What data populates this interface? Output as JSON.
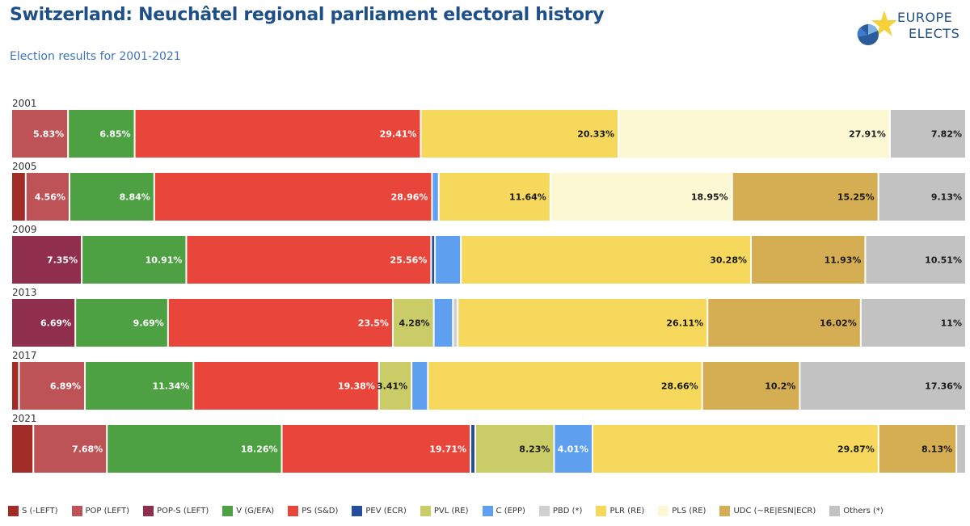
{
  "header": {
    "title": "Switzerland: Neuchâtel regional parliament electoral history",
    "subtitle": "Election results for 2001-2021"
  },
  "logo": {
    "line1": "EUROPE",
    "line2": "ELECTS"
  },
  "chart_data": {
    "type": "bar",
    "orientation": "horizontal",
    "stacked": true,
    "title": "Switzerland: Neuchâtel regional parliament electoral history",
    "subtitle": "Election results for 2001-2021",
    "categories": [
      "2001",
      "2005",
      "2009",
      "2013",
      "2017",
      "2021"
    ],
    "legend_position": "bottom",
    "grid": false,
    "series": [
      {
        "name": "S (-LEFT)",
        "color": "#a12b27",
        "values": [
          0,
          1.5,
          0,
          0,
          0.8,
          2.3
        ],
        "labels": [
          "",
          "",
          "",
          "",
          "",
          ""
        ]
      },
      {
        "name": "POP (LEFT)",
        "color": "#bd5257",
        "values": [
          5.83,
          4.56,
          0,
          0,
          6.89,
          7.68
        ],
        "labels": [
          "5.83%",
          "4.56%",
          "",
          "",
          "6.89%",
          "7.68%"
        ]
      },
      {
        "name": "POP-S (LEFT)",
        "color": "#8f2f4d",
        "values": [
          0,
          0,
          7.35,
          6.69,
          0,
          0
        ],
        "labels": [
          "",
          "",
          "7.35%",
          "6.69%",
          "",
          ""
        ]
      },
      {
        "name": "V (G/EFA)",
        "color": "#4ea143",
        "values": [
          6.85,
          8.84,
          10.91,
          9.69,
          11.34,
          18.26
        ],
        "labels": [
          "6.85%",
          "8.84%",
          "10.91%",
          "9.69%",
          "11.34%",
          "18.26%"
        ]
      },
      {
        "name": "PS (S&D)",
        "color": "#e8463b",
        "values": [
          29.41,
          28.96,
          25.56,
          23.5,
          19.38,
          19.71
        ],
        "labels": [
          "29.41%",
          "28.96%",
          "25.56%",
          "23.5%",
          "19.38%",
          "19.71%"
        ]
      },
      {
        "name": "PEV (ECR)",
        "color": "#244fa0",
        "values": [
          0,
          0,
          0.4,
          0,
          0,
          0.5
        ],
        "labels": [
          "",
          "",
          "",
          "",
          "",
          ""
        ]
      },
      {
        "name": "PVL (RE)",
        "color": "#c9cc67",
        "values": [
          0,
          0,
          0,
          4.28,
          3.41,
          8.23
        ],
        "labels": [
          "",
          "",
          "",
          "4.28%",
          "3.41%",
          "8.23%"
        ]
      },
      {
        "name": "C (EPP)",
        "color": "#5f9ff0",
        "values": [
          0,
          0.7,
          2.7,
          2.0,
          1.7,
          4.01
        ],
        "labels": [
          "",
          "",
          "",
          "",
          "",
          "4.01%"
        ]
      },
      {
        "name": "PBD (*)",
        "color": "#d0d0d0",
        "values": [
          0,
          0,
          0,
          0.5,
          0,
          0
        ],
        "labels": [
          "",
          "",
          "",
          "",
          "",
          ""
        ]
      },
      {
        "name": "PLR (RE)",
        "color": "#f6d95c",
        "values": [
          20.33,
          11.64,
          30.28,
          26.11,
          28.66,
          29.87
        ],
        "labels": [
          "20.33%",
          "11.64%",
          "30.28%",
          "26.11%",
          "28.66%",
          "29.87%"
        ]
      },
      {
        "name": "PLS (RE)",
        "color": "#fdf8d4",
        "values": [
          27.91,
          18.95,
          0,
          0,
          0,
          0
        ],
        "labels": [
          "27.91%",
          "18.95%",
          "",
          "",
          "",
          ""
        ]
      },
      {
        "name": "UDC (~RE|ESN|ECR)",
        "color": "#d5ad52",
        "values": [
          0,
          15.25,
          11.93,
          16.02,
          10.2,
          8.13
        ],
        "labels": [
          "",
          "15.25%",
          "11.93%",
          "16.02%",
          "10.2%",
          "8.13%"
        ]
      },
      {
        "name": "Others (*)",
        "color": "#c2c2c2",
        "values": [
          7.82,
          9.13,
          10.51,
          11,
          17.36,
          1.0
        ],
        "labels": [
          "7.82%",
          "9.13%",
          "10.51%",
          "11%",
          "17.36%",
          ""
        ]
      }
    ]
  }
}
